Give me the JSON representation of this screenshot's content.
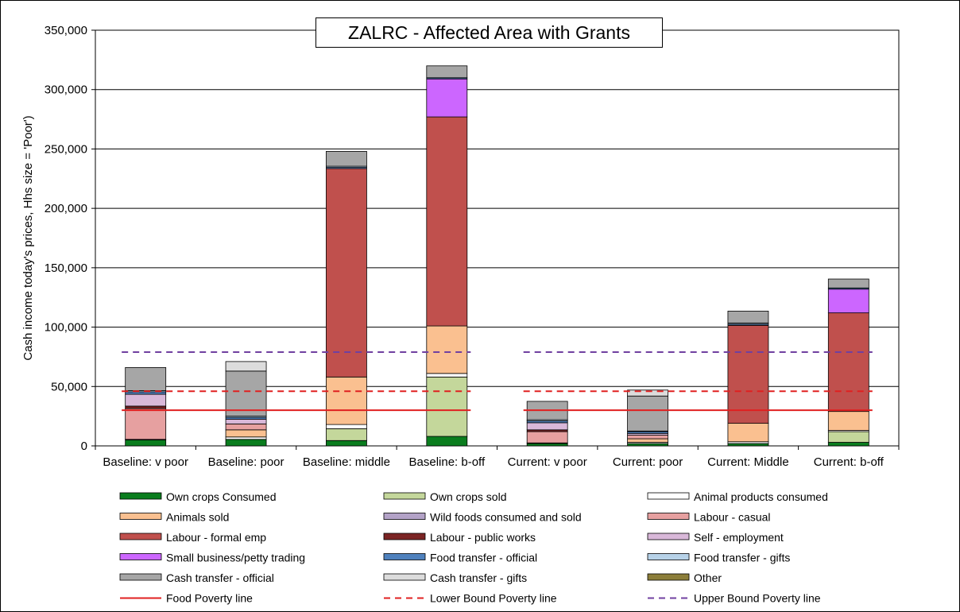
{
  "chart_data": {
    "type": "bar",
    "stacked": true,
    "title": "ZALRC - Affected Area with Grants",
    "ylabel": "Cash income today's prices, Hhs size = 'Poor')",
    "xlabel": "",
    "ylim": [
      0,
      350000
    ],
    "yticks": [
      0,
      50000,
      100000,
      150000,
      200000,
      250000,
      300000,
      350000
    ],
    "ytick_labels": [
      "0",
      "50,000",
      "100,000",
      "150,000",
      "200,000",
      "250,000",
      "300,000",
      "350,000"
    ],
    "grid": "horizontal",
    "legend_position": "bottom",
    "categories": [
      "Baseline: v poor",
      "Baseline: poor",
      "Baseline: middle",
      "Baseline: b-off",
      "Current: v poor",
      "Current: poor",
      "Current: Middle",
      "Current: b-off"
    ],
    "series": [
      {
        "name": "Own crops Consumed",
        "color": "#0a7d1e",
        "values": [
          5000,
          5500,
          4500,
          8000,
          2000,
          2000,
          2000,
          3000
        ]
      },
      {
        "name": "Own crops sold",
        "color": "#c4d79b",
        "values": [
          0,
          0,
          10000,
          50000,
          0,
          0,
          0,
          9000
        ]
      },
      {
        "name": "Animal products consumed",
        "color": "#ffffff",
        "values": [
          500,
          2000,
          3500,
          3000,
          500,
          1000,
          1500,
          1000
        ]
      },
      {
        "name": "Animals sold",
        "color": "#fac090",
        "values": [
          0,
          6000,
          40000,
          40000,
          0,
          3000,
          15500,
          16000
        ]
      },
      {
        "name": "Wild foods consumed and sold",
        "color": "#b3a2c7",
        "values": [
          0,
          0,
          0,
          0,
          0,
          0,
          0,
          0
        ]
      },
      {
        "name": "Labour - casual",
        "color": "#e6a0a0",
        "values": [
          26000,
          5000,
          0,
          0,
          9500,
          3000,
          0,
          0
        ]
      },
      {
        "name": "Labour - formal emp",
        "color": "#c0504d",
        "values": [
          0,
          0,
          175500,
          176000,
          0,
          0,
          82500,
          83000
        ]
      },
      {
        "name": "Labour - public works",
        "color": "#7b2424",
        "values": [
          2000,
          0,
          0,
          0,
          1500,
          0,
          0,
          0
        ]
      },
      {
        "name": "Self - employment",
        "color": "#d9b8d9",
        "values": [
          10000,
          4000,
          0,
          0,
          6000,
          1500,
          0,
          0
        ]
      },
      {
        "name": "Small business/petty trading",
        "color": "#cc66ff",
        "values": [
          0,
          0,
          0,
          32000,
          0,
          0,
          0,
          20000
        ]
      },
      {
        "name": "Food transfer - official",
        "color": "#4f81bd",
        "values": [
          2000,
          1500,
          1000,
          1000,
          1500,
          1500,
          1000,
          1000
        ]
      },
      {
        "name": "Food transfer - gifts",
        "color": "#b7d2e8",
        "values": [
          1000,
          1000,
          1000,
          0,
          1000,
          500,
          1000,
          0
        ]
      },
      {
        "name": "Cash transfer - official",
        "color": "#a6a6a6",
        "values": [
          19500,
          38000,
          12500,
          10000,
          15500,
          29500,
          10000,
          7500
        ]
      },
      {
        "name": "Cash transfer - gifts",
        "color": "#dcdcdc",
        "values": [
          0,
          8000,
          0,
          0,
          0,
          5000,
          0,
          0
        ]
      },
      {
        "name": "Other",
        "color": "#8c7e3a",
        "values": [
          0,
          0,
          0,
          0,
          0,
          0,
          0,
          0
        ]
      }
    ],
    "lines": [
      {
        "name": "Food Poverty line",
        "color": "#e02020",
        "dash": "solid",
        "value": 30000
      },
      {
        "name": "Lower Bound Poverty line",
        "color": "#e02020",
        "dash": "dashed",
        "value": 46000
      },
      {
        "name": "Upper Bound Poverty line",
        "color": "#7040a0",
        "dash": "dashed",
        "value": 79000
      }
    ],
    "line_groups": [
      [
        0,
        3
      ],
      [
        4,
        7
      ]
    ]
  }
}
